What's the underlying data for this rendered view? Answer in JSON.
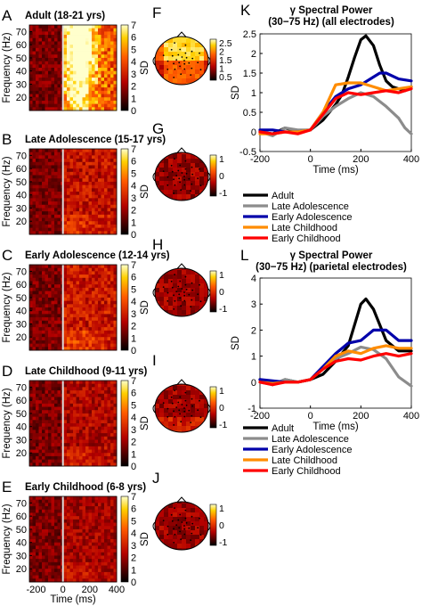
{
  "heatmaps": {
    "ylabel": "Frequency (Hz)",
    "yticks": [
      20,
      30,
      40,
      50,
      60,
      70
    ],
    "xticks": [
      -200,
      0,
      200,
      400
    ],
    "xlabel": "Time (ms)",
    "colorbar_ticks": [
      0,
      1,
      2,
      3,
      4,
      5,
      6,
      7
    ],
    "colorbar_label": "SD",
    "panels": [
      {
        "letter": "A",
        "title": "Adult (18-21 yrs)",
        "intensity": 1.0
      },
      {
        "letter": "B",
        "title": "Late Adolescence (15-17 yrs)",
        "intensity": 0.55
      },
      {
        "letter": "C",
        "title": "Early Adolescence (12-14 yrs)",
        "intensity": 0.6
      },
      {
        "letter": "D",
        "title": "Late Childhood (9-11 yrs)",
        "intensity": 0.45
      },
      {
        "letter": "E",
        "title": "Early Childhood (6-8 yrs)",
        "intensity": 0.4
      }
    ]
  },
  "topomaps": [
    {
      "letter": "F",
      "ticks": [
        "2.5",
        "2",
        "1.5",
        "1",
        "0.5"
      ],
      "warm": true
    },
    {
      "letter": "G",
      "ticks": [
        "1",
        "0",
        "-1"
      ],
      "warm": false
    },
    {
      "letter": "H",
      "ticks": [
        "1",
        "0",
        "-1"
      ],
      "warm": false
    },
    {
      "letter": "I",
      "ticks": [
        "1",
        "0",
        "-1"
      ],
      "warm": false
    },
    {
      "letter": "J",
      "ticks": [
        "1",
        "0",
        "-1"
      ],
      "warm": false
    }
  ],
  "chart_data": [
    {
      "letter": "K",
      "type": "line",
      "title": "γ Spectral Power",
      "subtitle": "(30−75 Hz) (all electrodes)",
      "xlabel": "Time (ms)",
      "ylabel": "SD",
      "xlim": [
        -200,
        400
      ],
      "ylim": [
        -0.5,
        2.5
      ],
      "xticks": [
        -200,
        0,
        200,
        400
      ],
      "yticks": [
        -0.5,
        0,
        0.5,
        1,
        1.5,
        2,
        2.5
      ],
      "series": [
        {
          "name": "Adult",
          "color": "#000000",
          "x": [
            -200,
            -150,
            -100,
            -50,
            0,
            50,
            100,
            125,
            150,
            175,
            200,
            220,
            250,
            275,
            300,
            325,
            350,
            375,
            400
          ],
          "y": [
            0,
            -0.05,
            0.1,
            0,
            0.05,
            0.3,
            0.7,
            0.95,
            1.4,
            1.9,
            2.35,
            2.45,
            2.2,
            1.7,
            1.3,
            1.15,
            1.1,
            1.05,
            1.15
          ]
        },
        {
          "name": "Late Adolescence",
          "color": "#8c8c8c",
          "x": [
            -200,
            -150,
            -100,
            -50,
            0,
            50,
            100,
            150,
            200,
            250,
            300,
            350,
            375,
            400
          ],
          "y": [
            0,
            -0.1,
            0.1,
            0.05,
            0.05,
            0.4,
            0.65,
            0.85,
            1.0,
            0.9,
            0.65,
            0.35,
            0.1,
            -0.05
          ]
        },
        {
          "name": "Early Adolescence",
          "color": "#0000aa",
          "x": [
            -200,
            -150,
            -100,
            -50,
            0,
            50,
            100,
            150,
            200,
            250,
            275,
            300,
            350,
            400
          ],
          "y": [
            0.05,
            0.05,
            0,
            0,
            0.05,
            0.5,
            0.9,
            1.1,
            1.2,
            1.4,
            1.5,
            1.5,
            1.35,
            1.3
          ]
        },
        {
          "name": "Late Childhood",
          "color": "#ff8c00",
          "x": [
            -200,
            -150,
            -100,
            -50,
            0,
            50,
            100,
            150,
            200,
            250,
            300,
            350,
            400
          ],
          "y": [
            -0.05,
            -0.05,
            0,
            0,
            0.05,
            0.5,
            1.2,
            1.25,
            1.25,
            1.15,
            1.05,
            1.1,
            1.15
          ]
        },
        {
          "name": "Early Childhood",
          "color": "#ff0000",
          "x": [
            -200,
            -150,
            -100,
            -50,
            0,
            50,
            100,
            150,
            200,
            250,
            300,
            350,
            400
          ],
          "y": [
            0,
            -0.05,
            0,
            -0.05,
            0.05,
            0.45,
            0.85,
            1.0,
            0.95,
            1.0,
            1.05,
            1.0,
            1.1
          ]
        }
      ]
    },
    {
      "letter": "L",
      "type": "line",
      "title": "γ Spectral Power",
      "subtitle": "(30−75 Hz) (parietal electrodes)",
      "xlabel": "Time (ms)",
      "ylabel": "SD",
      "xlim": [
        -200,
        400
      ],
      "ylim": [
        -1,
        4
      ],
      "xticks": [
        -200,
        0,
        200,
        400
      ],
      "yticks": [
        -1,
        0,
        1,
        2,
        3,
        4
      ],
      "series": [
        {
          "name": "Adult",
          "color": "#000000",
          "x": [
            -200,
            -150,
            -100,
            -50,
            0,
            50,
            100,
            150,
            200,
            220,
            250,
            300,
            350,
            400
          ],
          "y": [
            0.1,
            -0.1,
            0.1,
            0,
            0.1,
            0.3,
            0.8,
            1.4,
            3.0,
            3.2,
            2.8,
            1.6,
            1.2,
            1.2
          ]
        },
        {
          "name": "Late Adolescence",
          "color": "#8c8c8c",
          "x": [
            -200,
            -150,
            -100,
            -50,
            0,
            50,
            100,
            150,
            200,
            250,
            300,
            350,
            400
          ],
          "y": [
            0,
            -0.1,
            0.1,
            0,
            0.1,
            0.5,
            0.9,
            1.1,
            1.35,
            1.25,
            0.9,
            0.2,
            -0.15
          ]
        },
        {
          "name": "Early Adolescence",
          "color": "#0000aa",
          "x": [
            -200,
            -150,
            -100,
            -50,
            0,
            50,
            100,
            150,
            200,
            250,
            300,
            350,
            400
          ],
          "y": [
            0.1,
            0.05,
            0,
            0,
            0.1,
            0.6,
            1.1,
            1.5,
            1.6,
            2.0,
            2.0,
            1.6,
            1.6
          ]
        },
        {
          "name": "Late Childhood",
          "color": "#ff8c00",
          "x": [
            -200,
            -150,
            -100,
            -50,
            0,
            50,
            100,
            150,
            200,
            250,
            300,
            350,
            400
          ],
          "y": [
            0,
            -0.05,
            0,
            0,
            0.1,
            0.5,
            1.0,
            1.2,
            1.1,
            1.3,
            1.4,
            1.3,
            1.3
          ]
        },
        {
          "name": "Early Childhood",
          "color": "#ff0000",
          "x": [
            -200,
            -150,
            -100,
            -50,
            0,
            50,
            100,
            150,
            200,
            250,
            300,
            350,
            400
          ],
          "y": [
            0,
            -0.1,
            0,
            0,
            0.1,
            0.5,
            0.8,
            0.9,
            0.85,
            1.0,
            1.1,
            1.0,
            1.1
          ]
        }
      ]
    }
  ]
}
